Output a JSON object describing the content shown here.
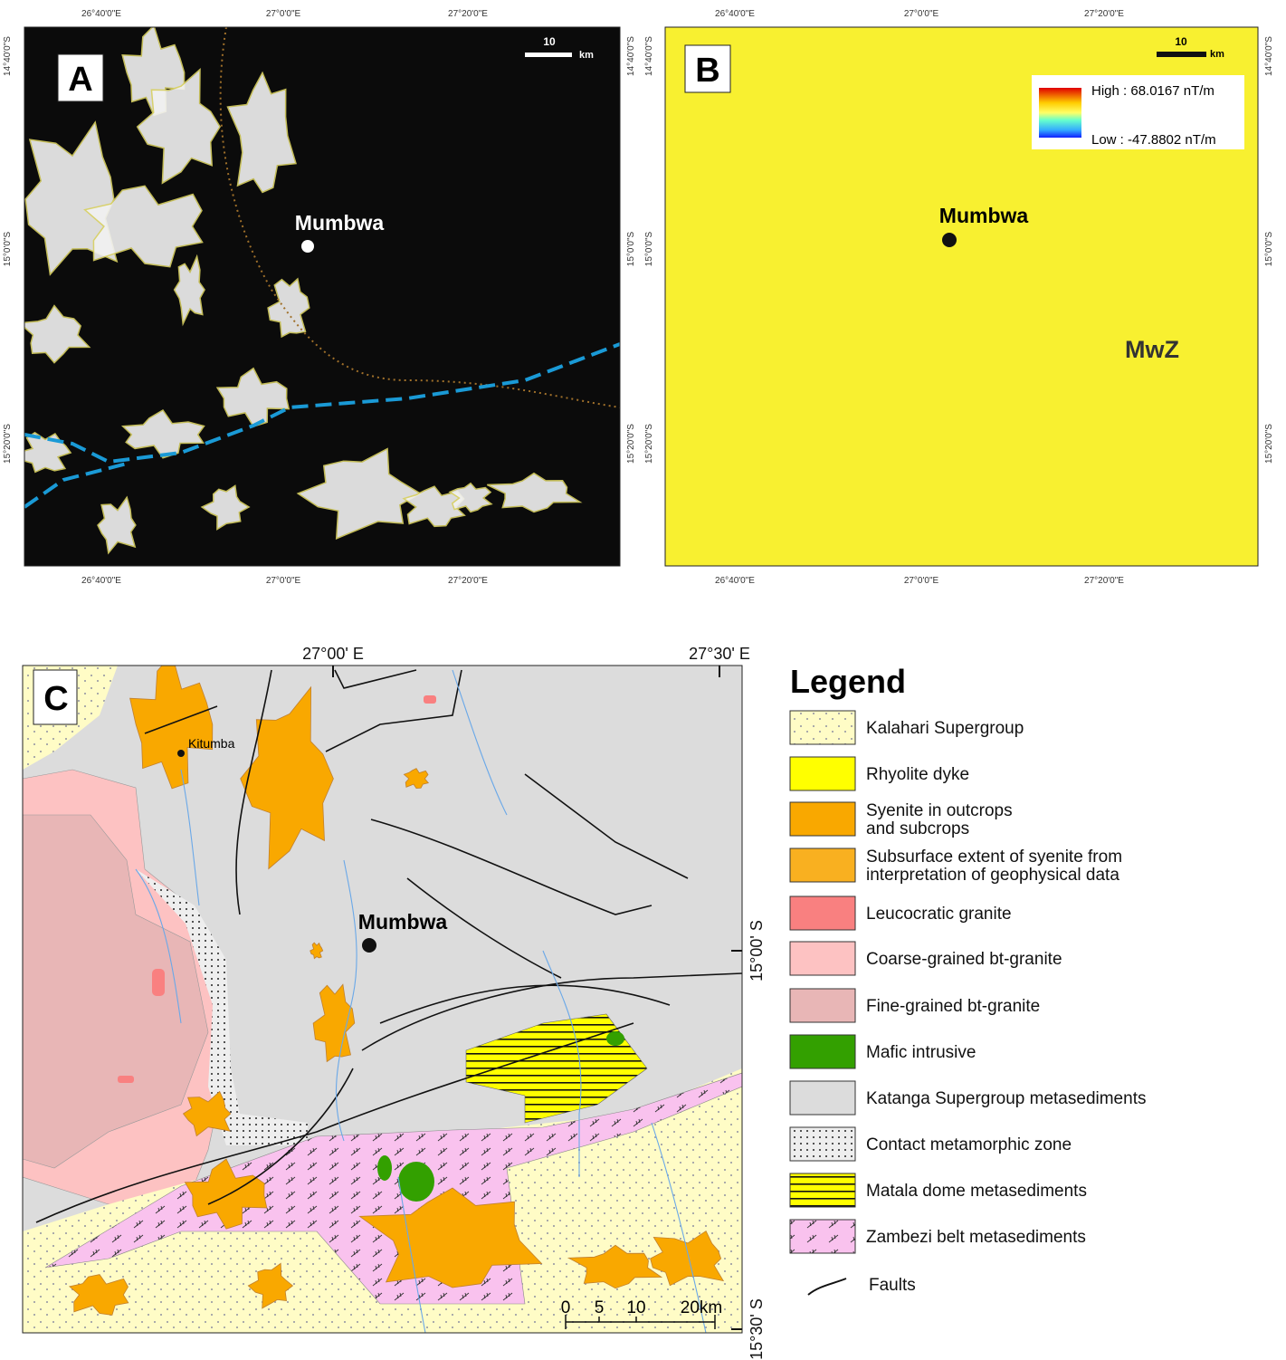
{
  "panels": {
    "A": {
      "label": "A",
      "x_ticks": [
        "26°40'0\"E",
        "27°0'0\"E",
        "27°20'0\"E"
      ],
      "y_ticks": [
        "14°40'0\"S",
        "15°0'0\"S",
        "15°20'0\"S"
      ],
      "scale_value": "10",
      "scale_unit": "km",
      "place": "Mumbwa"
    },
    "B": {
      "label": "B",
      "x_ticks": [
        "26°40'0\"E",
        "27°0'0\"E",
        "27°20'0\"E"
      ],
      "y_ticks": [
        "14°40'0\"S",
        "15°0'0\"S",
        "15°20'0\"S"
      ],
      "scale_value": "10",
      "scale_unit": "km",
      "place": "Mumbwa",
      "zone": "MwZ",
      "high": "High : 68.0167 nT/m",
      "low": "Low : -47.8802 nT/m"
    },
    "C": {
      "label": "C",
      "x_ticks": [
        "27°00' E",
        "27°30' E"
      ],
      "y_ticks": [
        "15°00' S",
        "15°30' S"
      ],
      "places": [
        "Kitumba",
        "Mumbwa"
      ],
      "scale_labels": [
        "0",
        "5",
        "10",
        "20km"
      ]
    }
  },
  "legend": {
    "title": "Legend",
    "items": [
      {
        "lines": [
          "Kalahari Supergroup"
        ]
      },
      {
        "lines": [
          "Rhyolite dyke"
        ]
      },
      {
        "lines": [
          "Syenite in outcrops",
          "and subcrops"
        ]
      },
      {
        "lines": [
          "Subsurface extent of syenite from",
          "interpretation of geophysical data"
        ]
      },
      {
        "lines": [
          "Leucocratic granite"
        ]
      },
      {
        "lines": [
          "Coarse-grained bt-granite"
        ]
      },
      {
        "lines": [
          "Fine-grained bt-granite"
        ]
      },
      {
        "lines": [
          "Mafic intrusive"
        ]
      },
      {
        "lines": [
          "Katanga Supergroup metasediments"
        ]
      },
      {
        "lines": [
          "Contact metamorphic zone"
        ]
      },
      {
        "lines": [
          "Matala dome metasediments"
        ]
      },
      {
        "lines": [
          "Zambezi belt metasediments"
        ]
      }
    ],
    "faults": "Faults"
  }
}
